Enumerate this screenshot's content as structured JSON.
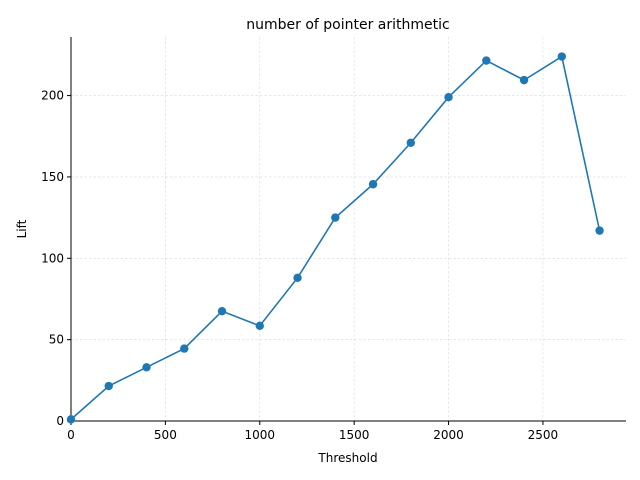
{
  "chart_data": {
    "type": "line",
    "title": "number of pointer arithmetic",
    "xlabel": "Threshold",
    "ylabel": "Lift",
    "xlim": [
      0,
      2940
    ],
    "ylim": [
      0,
      236
    ],
    "xticks": [
      0,
      500,
      1000,
      1500,
      2000,
      2500
    ],
    "yticks": [
      0,
      50,
      100,
      150,
      200
    ],
    "grid": true,
    "series": [
      {
        "color": "#1f77b4",
        "marker": "circle",
        "x": [
          0,
          200,
          400,
          600,
          800,
          1000,
          1200,
          1400,
          1600,
          1800,
          2000,
          2200,
          2400,
          2600,
          2800
        ],
        "y": [
          1,
          21.5,
          33,
          44.5,
          67.5,
          58.5,
          88,
          125,
          145.5,
          171,
          199,
          221.5,
          209.5,
          224,
          117
        ]
      }
    ]
  }
}
